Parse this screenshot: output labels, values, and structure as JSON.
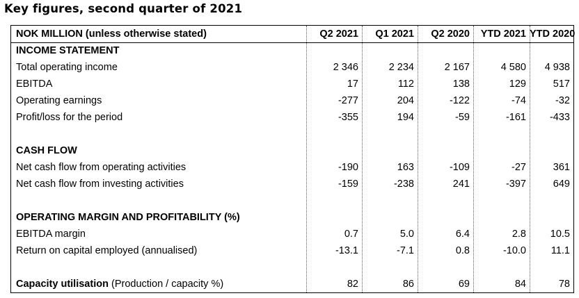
{
  "title": "Key figures, second quarter of 2021",
  "header": {
    "label": "NOK MILLION (unless otherwise stated)",
    "columns": [
      "Q2 2021",
      "Q1 2021",
      "Q2 2020",
      "YTD 2021",
      "YTD 2020"
    ]
  },
  "sections": {
    "income": {
      "heading": "INCOME STATEMENT",
      "rows": [
        {
          "label": "Total operating income",
          "values": [
            "2 346",
            "2 234",
            "2 167",
            "4 580",
            "4 938"
          ]
        },
        {
          "label": "EBITDA",
          "values": [
            "17",
            "112",
            "138",
            "129",
            "517"
          ]
        },
        {
          "label": "Operating earnings",
          "values": [
            "-277",
            "204",
            "-122",
            "-74",
            "-32"
          ]
        },
        {
          "label": "Profit/loss for the period",
          "values": [
            "-355",
            "194",
            "-59",
            "-161",
            "-433"
          ]
        }
      ]
    },
    "cash": {
      "heading": "CASH FLOW",
      "rows": [
        {
          "label": "Net cash flow from operating activities",
          "values": [
            "-190",
            "163",
            "-109",
            "-27",
            "361"
          ]
        },
        {
          "label": "Net cash flow from investing activities",
          "values": [
            "-159",
            "-238",
            "241",
            "-397",
            "649"
          ]
        }
      ]
    },
    "margin": {
      "heading": "OPERATING MARGIN AND PROFITABILITY (%)",
      "rows": [
        {
          "label": "EBITDA margin",
          "values": [
            "0.7",
            "5.0",
            "6.4",
            "2.8",
            "10.5"
          ]
        },
        {
          "label": "Return on capital employed (annualised)",
          "values": [
            "-13.1",
            "-7.1",
            "0.8",
            "-10.0",
            "11.1"
          ]
        }
      ]
    },
    "capacity": {
      "label_bold": "Capacity utilisation",
      "label_rest": "(Production / capacity %)",
      "values": [
        "82",
        "86",
        "69",
        "84",
        "78"
      ]
    }
  }
}
